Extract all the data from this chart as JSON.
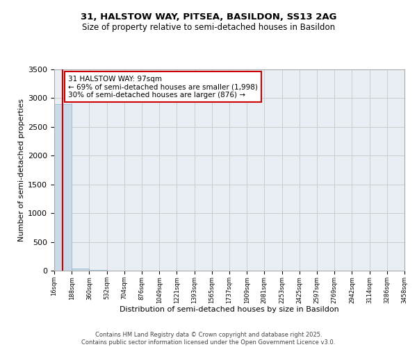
{
  "title1": "31, HALSTOW WAY, PITSEA, BASILDON, SS13 2AG",
  "title2": "Size of property relative to semi-detached houses in Basildon",
  "xlabel": "Distribution of semi-detached houses by size in Basildon",
  "ylabel": "Number of semi-detached properties",
  "property_size": 97,
  "annotation_text_line1": "31 HALSTOW WAY: 97sqm",
  "annotation_text_line2": "← 69% of semi-detached houses are smaller (1,998)",
  "annotation_text_line3": "30% of semi-detached houses are larger (876) →",
  "bin_edges": [
    16,
    188,
    360,
    532,
    704,
    876,
    1049,
    1221,
    1393,
    1565,
    1737,
    1909,
    2081,
    2253,
    2425,
    2597,
    2769,
    2942,
    3114,
    3286,
    3458
  ],
  "bar_heights": [
    2900,
    35,
    10,
    5,
    3,
    2,
    2,
    1,
    1,
    1,
    1,
    1,
    0,
    0,
    0,
    0,
    0,
    0,
    0,
    1
  ],
  "bar_color": "#c9d9e8",
  "bar_edge_color": "#8ab4cc",
  "grid_color": "#cccccc",
  "bg_color": "#e8eef4",
  "red_line_color": "#cc0000",
  "annotation_box_facecolor": "#ffffff",
  "annotation_box_edgecolor": "#cc0000",
  "ylim": [
    0,
    3500
  ],
  "yticks": [
    0,
    500,
    1000,
    1500,
    2000,
    2500,
    3000,
    3500
  ],
  "footer_line1": "Contains HM Land Registry data © Crown copyright and database right 2025.",
  "footer_line2": "Contains public sector information licensed under the Open Government Licence v3.0."
}
